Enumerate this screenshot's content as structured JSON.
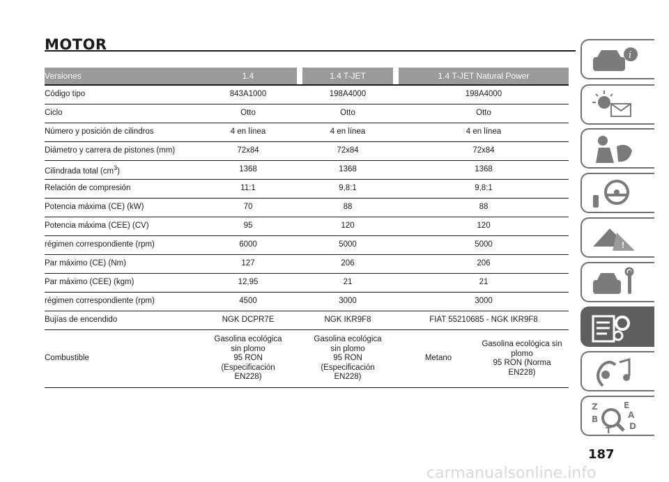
{
  "title": "MOTOR",
  "table": {
    "headers": [
      "Versiones",
      "1.4",
      "1.4 T-JET",
      "1.4 T-JET Natural Power"
    ],
    "rows": [
      [
        "Código tipo",
        "843A1000",
        "198A4000",
        "198A4000"
      ],
      [
        "Ciclo",
        "Otto",
        "Otto",
        "Otto"
      ],
      [
        "Número y posición de cilindros",
        "4 en línea",
        "4 en línea",
        "4 en línea"
      ],
      [
        "Diámetro y carrera de pistones (mm)",
        "72x84",
        "72x84",
        "72x84"
      ],
      [
        "Cilindrada total (cm",
        "1368",
        "1368",
        "1368"
      ],
      [
        "Relación de compresión",
        "11:1",
        "9,8:1",
        "9,8:1"
      ],
      [
        "Potencia máxima (CE) (kW)",
        "70",
        "88",
        "88"
      ],
      [
        "Potencia máxima (CEE) (CV)",
        "95",
        "120",
        "120"
      ],
      [
        "régimen correspondiente (rpm)",
        "6000",
        "5000",
        "5000"
      ],
      [
        "Par máximo (CE) (Nm)",
        "127",
        "206",
        "206"
      ],
      [
        "Par máximo (CEE) (kgm)",
        "12,95",
        "21",
        "21"
      ],
      [
        "régimen correspondiente (rpm)",
        "4500",
        "3000",
        "3000"
      ],
      [
        "Bujías de encendido",
        "NGK DCPR7E",
        "NGK IKR9F8",
        "FIAT 55210685 - NGK IKR9F8"
      ]
    ],
    "cilindrada_sup": "3",
    "cilindrada_close": ")",
    "fuel": {
      "label": "Combustible",
      "v1": [
        "Gasolina ecológica",
        "sin plomo",
        "95 RON",
        "(Especificación",
        "EN228)"
      ],
      "v2": [
        "Gasolina ecológica",
        "sin plomo",
        "95 RON",
        "(Especificación",
        "EN228)"
      ],
      "v3a": "Metano",
      "v3b": [
        "Gasolina ecológica sin",
        "plomo",
        "95 RON (Norma",
        "EN228)"
      ]
    }
  },
  "tabs": [
    {
      "icon": "car-info-icon",
      "active": false
    },
    {
      "icon": "warning-lights-icon",
      "active": false
    },
    {
      "icon": "airbag-safety-icon",
      "active": false
    },
    {
      "icon": "steering-key-icon",
      "active": false
    },
    {
      "icon": "emergency-icon",
      "active": false
    },
    {
      "icon": "maintenance-icon",
      "active": false
    },
    {
      "icon": "technical-data-icon",
      "active": true
    },
    {
      "icon": "multimedia-icon",
      "active": false
    },
    {
      "icon": "index-icon",
      "active": false
    }
  ],
  "page_number": "187",
  "watermark": "carmanualsonline.info"
}
